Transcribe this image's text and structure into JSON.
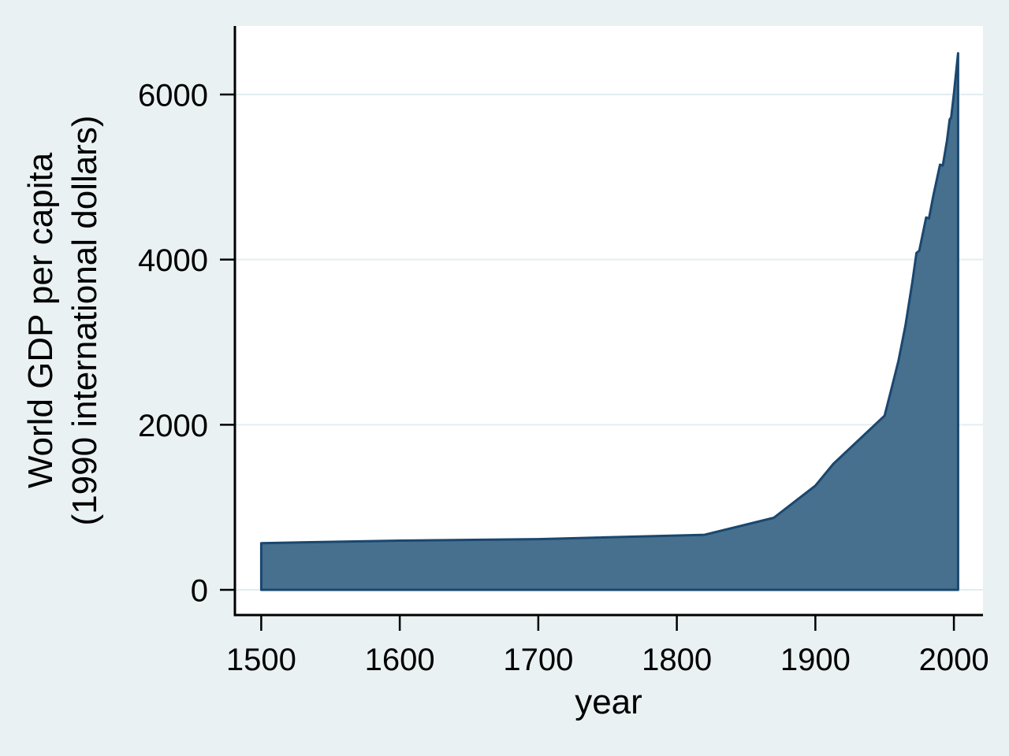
{
  "chart_data": {
    "type": "area",
    "title": "",
    "xlabel": "year",
    "ylabel": "World GDP per capita (1990 international dollars)",
    "ylabel_line1": "World GDP per capita",
    "ylabel_line2": "(1990 international dollars)",
    "x_ticks": [
      1500,
      1600,
      1700,
      1800,
      1900,
      2000
    ],
    "y_ticks": [
      0,
      2000,
      4000,
      6000
    ],
    "xlim": [
      1481,
      2021
    ],
    "ylim": [
      -305,
      6830
    ],
    "grid": true,
    "legend": "none",
    "series": [
      {
        "name": "World GDP per capita (1990 international dollars)",
        "points": [
          [
            1500,
            566
          ],
          [
            1600,
            596
          ],
          [
            1700,
            615
          ],
          [
            1820,
            667
          ],
          [
            1870,
            873
          ],
          [
            1900,
            1262
          ],
          [
            1913,
            1526
          ],
          [
            1950,
            2110
          ],
          [
            1955,
            2440
          ],
          [
            1960,
            2775
          ],
          [
            1965,
            3200
          ],
          [
            1970,
            3730
          ],
          [
            1973,
            4080
          ],
          [
            1975,
            4110
          ],
          [
            1980,
            4510
          ],
          [
            1982,
            4500
          ],
          [
            1985,
            4760
          ],
          [
            1990,
            5150
          ],
          [
            1992,
            5140
          ],
          [
            1995,
            5440
          ],
          [
            1997,
            5700
          ],
          [
            1998,
            5720
          ],
          [
            2000,
            6010
          ],
          [
            2003,
            6500
          ]
        ],
        "baseline": 0
      }
    ],
    "colors": {
      "background": "#EAF1F3",
      "plot_background": "#FFFFFF",
      "grid": "#E3EDF0",
      "area_fill": "#47708E",
      "area_stroke": "#1A476F",
      "axis": "#000000"
    }
  }
}
